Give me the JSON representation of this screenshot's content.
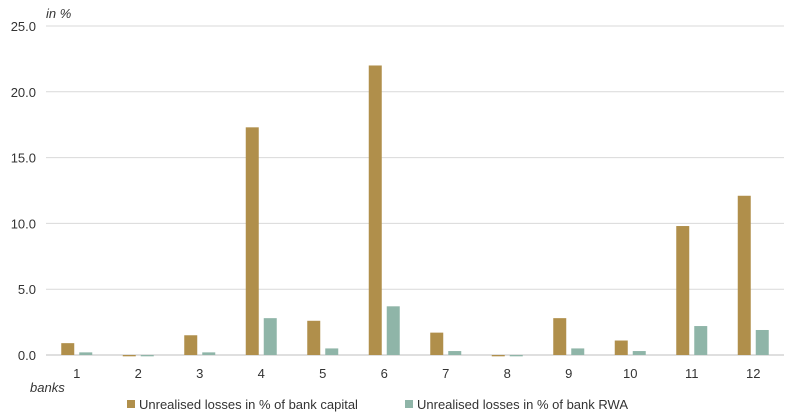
{
  "chart_data": {
    "type": "bar",
    "ylabel": "in %",
    "xlabel": "banks",
    "ylim": [
      0,
      25
    ],
    "yticks": [
      "0.0",
      "5.0",
      "10.0",
      "15.0",
      "20.0",
      "25.0"
    ],
    "ytick_values": [
      0,
      5,
      10,
      15,
      20,
      25
    ],
    "categories": [
      "1",
      "2",
      "3",
      "4",
      "5",
      "6",
      "7",
      "8",
      "9",
      "10",
      "11",
      "12"
    ],
    "grid": true,
    "legend_position": "bottom",
    "series": [
      {
        "name": "Unrealised losses in % of bank capital",
        "color": "#b08f4b",
        "values": [
          0.9,
          -0.1,
          1.5,
          17.3,
          2.6,
          22.0,
          1.7,
          -0.1,
          2.8,
          1.1,
          9.8,
          12.1
        ]
      },
      {
        "name": "Unrealised losses in % of bank RWA",
        "color": "#8fb5a8",
        "values": [
          0.2,
          -0.1,
          0.2,
          2.8,
          0.5,
          3.7,
          0.3,
          -0.1,
          0.5,
          0.3,
          2.2,
          1.9
        ]
      }
    ]
  }
}
